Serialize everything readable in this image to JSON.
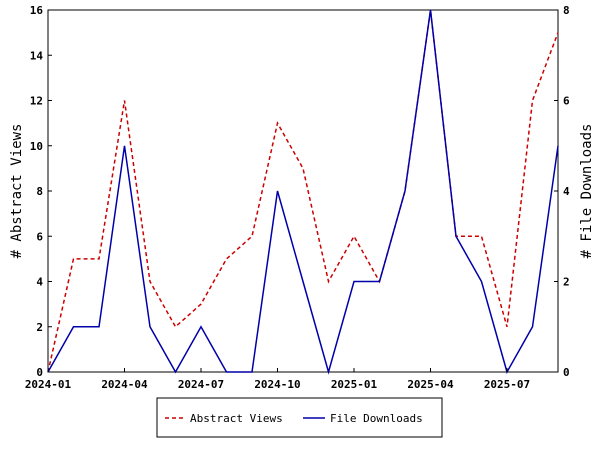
{
  "chart_data": {
    "type": "line",
    "x": [
      "2024-01",
      "2024-02",
      "2024-03",
      "2024-04",
      "2024-05",
      "2024-06",
      "2024-07",
      "2024-08",
      "2024-09",
      "2024-10",
      "2024-11",
      "2024-12",
      "2025-01",
      "2025-02",
      "2025-03",
      "2025-04",
      "2025-05",
      "2025-06",
      "2025-07",
      "2025-08",
      "2025-09"
    ],
    "x_tick_labels": [
      "2024-01",
      "2024-04",
      "2024-07",
      "2024-10",
      "2025-01",
      "2025-04",
      "2025-07"
    ],
    "ylabel_left": "# Abstract Views",
    "ylabel_right": "# File Downloads",
    "ylim_left": [
      0,
      16
    ],
    "ylim_right": [
      0,
      8
    ],
    "y_ticks_left": [
      "0",
      "2",
      "4",
      "6",
      "8",
      "10",
      "12",
      "14",
      "16"
    ],
    "y_ticks_right": [
      "0",
      "2",
      "4",
      "6",
      "8"
    ],
    "series": [
      {
        "name": "Abstract Views",
        "axis": "left",
        "color": "#cc0000",
        "style": "dashed",
        "values": [
          0,
          5,
          5,
          12,
          4,
          2,
          3,
          5,
          6,
          11,
          9,
          4,
          6,
          4,
          8,
          16,
          6,
          6,
          2,
          12,
          15
        ]
      },
      {
        "name": "File Downloads",
        "axis": "right",
        "color": "#0000aa",
        "style": "solid",
        "values": [
          0,
          1,
          1,
          5,
          1,
          0,
          1,
          0,
          0,
          4,
          2,
          0,
          2,
          2,
          4,
          8,
          3,
          2,
          0,
          1,
          5
        ]
      }
    ],
    "grid": false,
    "legend_position": "bottom-center"
  }
}
